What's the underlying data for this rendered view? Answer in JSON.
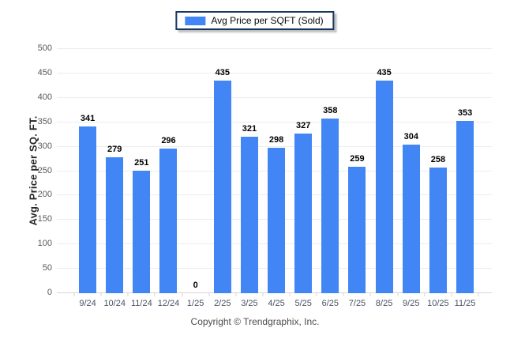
{
  "chart_data": {
    "type": "bar",
    "legend": [
      "Avg Price per SQFT (Sold)"
    ],
    "categories": [
      "9/24",
      "10/24",
      "11/24",
      "12/24",
      "1/25",
      "2/25",
      "3/25",
      "4/25",
      "5/25",
      "6/25",
      "7/25",
      "8/25",
      "9/25",
      "10/25",
      "11/25"
    ],
    "values": [
      341,
      279,
      251,
      296,
      0,
      435,
      321,
      298,
      327,
      358,
      259,
      435,
      304,
      258,
      353
    ],
    "value_labels_shown": true,
    "title": "",
    "xlabel": "",
    "ylabel": "Avg. Price per SQ. FT.",
    "ylim": [
      0,
      500
    ],
    "yticks": [
      0,
      50,
      100,
      150,
      200,
      250,
      300,
      350,
      400,
      450,
      500
    ],
    "grid": true,
    "legend_position": "top-center",
    "bar_color": "#4285F4"
  },
  "footer": {
    "copyright": "Copyright © Trendgraphix, Inc."
  },
  "colors": {
    "bar": "#4285F4",
    "gridline": "#ededed",
    "axis_line": "#d6d6d6",
    "y_tick_text": "#595959",
    "x_tick_text": "#475063",
    "value_label_text": "#000000",
    "y_axis_title_text": "#262626",
    "legend_border": "#17375e",
    "legend_text": "#0a0a0a",
    "footer_text": "#4d4d4d",
    "background": "#ffffff"
  }
}
